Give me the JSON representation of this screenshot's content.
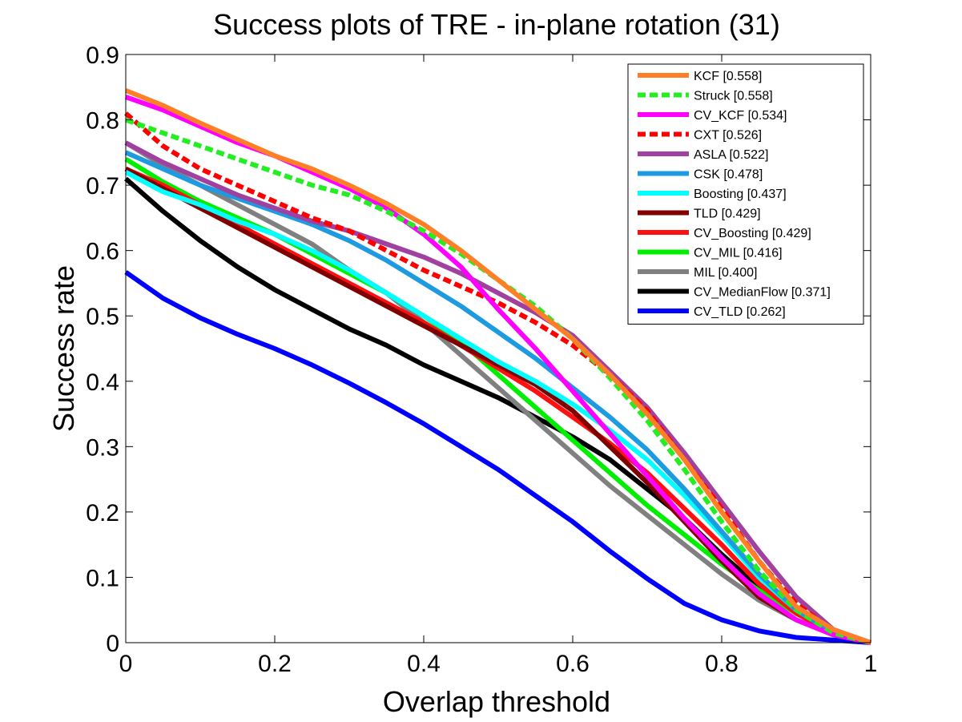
{
  "chart_data": {
    "type": "line",
    "title": "Success plots of TRE - in-plane rotation (31)",
    "xlabel": "Overlap threshold",
    "ylabel": "Success rate",
    "xlim": [
      0,
      1
    ],
    "ylim": [
      0,
      0.9
    ],
    "xticks": [
      "0",
      "0.2",
      "0.4",
      "0.6",
      "0.8",
      "1"
    ],
    "yticks": [
      "0",
      "0.1",
      "0.2",
      "0.3",
      "0.4",
      "0.5",
      "0.6",
      "0.7",
      "0.8",
      "0.9"
    ],
    "grid": false,
    "legend_position": "top-right",
    "x": [
      0,
      0.05,
      0.1,
      0.15,
      0.2,
      0.25,
      0.3,
      0.35,
      0.4,
      0.45,
      0.5,
      0.55,
      0.6,
      0.65,
      0.7,
      0.75,
      0.8,
      0.85,
      0.9,
      0.95,
      1.0
    ],
    "series": [
      {
        "name": "KCF [0.558]",
        "color": "#ff7f27",
        "style": "solid",
        "values": [
          0.845,
          0.822,
          0.795,
          0.77,
          0.745,
          0.725,
          0.7,
          0.672,
          0.64,
          0.6,
          0.555,
          0.51,
          0.465,
          0.41,
          0.35,
          0.28,
          0.2,
          0.125,
          0.055,
          0.02,
          0.0
        ]
      },
      {
        "name": "Struck [0.558]",
        "color": "#22ee22",
        "style": "dashed",
        "values": [
          0.8,
          0.78,
          0.76,
          0.74,
          0.72,
          0.7,
          0.685,
          0.66,
          0.63,
          0.595,
          0.555,
          0.515,
          0.465,
          0.405,
          0.34,
          0.265,
          0.185,
          0.11,
          0.05,
          0.015,
          0.0
        ]
      },
      {
        "name": "CV_KCF [0.534]",
        "color": "#ff00ff",
        "style": "solid",
        "values": [
          0.835,
          0.815,
          0.79,
          0.765,
          0.745,
          0.72,
          0.695,
          0.665,
          0.625,
          0.575,
          0.51,
          0.45,
          0.385,
          0.32,
          0.255,
          0.19,
          0.13,
          0.075,
          0.035,
          0.012,
          0.0
        ]
      },
      {
        "name": "CXT [0.526]",
        "color": "#ff0000",
        "style": "dashed",
        "values": [
          0.81,
          0.76,
          0.725,
          0.7,
          0.675,
          0.65,
          0.63,
          0.6,
          0.57,
          0.545,
          0.52,
          0.49,
          0.455,
          0.41,
          0.355,
          0.28,
          0.205,
          0.125,
          0.06,
          0.018,
          0.0
        ]
      },
      {
        "name": "ASLA [0.522]",
        "color": "#a040a0",
        "style": "solid",
        "values": [
          0.765,
          0.735,
          0.71,
          0.685,
          0.665,
          0.645,
          0.63,
          0.61,
          0.59,
          0.565,
          0.535,
          0.505,
          0.47,
          0.415,
          0.36,
          0.29,
          0.215,
          0.14,
          0.07,
          0.02,
          0.0
        ]
      },
      {
        "name": "CSK [0.478]",
        "color": "#1e9be0",
        "style": "solid",
        "values": [
          0.75,
          0.725,
          0.7,
          0.68,
          0.66,
          0.64,
          0.615,
          0.585,
          0.55,
          0.515,
          0.475,
          0.435,
          0.39,
          0.345,
          0.295,
          0.235,
          0.17,
          0.105,
          0.05,
          0.015,
          0.0
        ]
      },
      {
        "name": "Boosting [0.437]",
        "color": "#00ffff",
        "style": "solid",
        "values": [
          0.72,
          0.69,
          0.67,
          0.645,
          0.625,
          0.6,
          0.57,
          0.535,
          0.5,
          0.465,
          0.43,
          0.4,
          0.365,
          0.325,
          0.28,
          0.225,
          0.165,
          0.1,
          0.05,
          0.015,
          0.0
        ]
      },
      {
        "name": "TLD [0.429]",
        "color": "#800000",
        "style": "solid",
        "values": [
          0.725,
          0.695,
          0.665,
          0.635,
          0.605,
          0.575,
          0.545,
          0.515,
          0.485,
          0.455,
          0.425,
          0.395,
          0.355,
          0.3,
          0.245,
          0.185,
          0.125,
          0.07,
          0.035,
          0.012,
          0.0
        ]
      },
      {
        "name": "CV_Boosting [0.429]",
        "color": "#ff1010",
        "style": "solid",
        "values": [
          0.725,
          0.7,
          0.67,
          0.64,
          0.61,
          0.58,
          0.55,
          0.52,
          0.49,
          0.455,
          0.42,
          0.385,
          0.345,
          0.305,
          0.26,
          0.205,
          0.15,
          0.09,
          0.045,
          0.015,
          0.0
        ]
      },
      {
        "name": "CV_MIL [0.416]",
        "color": "#00ee00",
        "style": "solid",
        "values": [
          0.74,
          0.705,
          0.675,
          0.65,
          0.625,
          0.595,
          0.565,
          0.535,
          0.5,
          0.46,
          0.41,
          0.36,
          0.31,
          0.26,
          0.21,
          0.165,
          0.12,
          0.08,
          0.045,
          0.015,
          0.0
        ]
      },
      {
        "name": "MIL [0.400]",
        "color": "#808080",
        "style": "solid",
        "values": [
          0.765,
          0.73,
          0.7,
          0.67,
          0.64,
          0.61,
          0.57,
          0.535,
          0.49,
          0.44,
          0.39,
          0.34,
          0.29,
          0.24,
          0.195,
          0.15,
          0.105,
          0.065,
          0.035,
          0.012,
          0.0
        ]
      },
      {
        "name": "CV_MedianFlow [0.371]",
        "color": "#000000",
        "style": "solid",
        "values": [
          0.71,
          0.66,
          0.615,
          0.575,
          0.54,
          0.51,
          0.48,
          0.455,
          0.425,
          0.4,
          0.375,
          0.345,
          0.315,
          0.28,
          0.235,
          0.19,
          0.135,
          0.085,
          0.045,
          0.015,
          0.0
        ]
      },
      {
        "name": "CV_TLD [0.262]",
        "color": "#0000ff",
        "style": "solid",
        "values": [
          0.567,
          0.527,
          0.497,
          0.472,
          0.45,
          0.425,
          0.397,
          0.367,
          0.335,
          0.3,
          0.265,
          0.225,
          0.185,
          0.14,
          0.098,
          0.06,
          0.035,
          0.018,
          0.008,
          0.004,
          0.0
        ]
      }
    ]
  }
}
